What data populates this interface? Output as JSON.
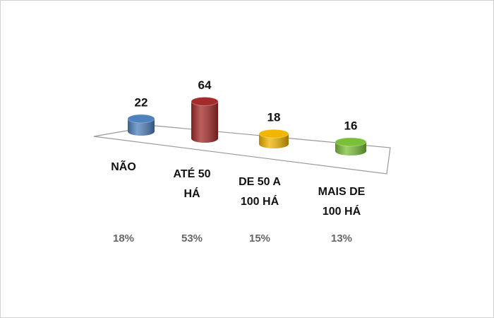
{
  "chart_data": {
    "type": "cylinder",
    "categories": [
      [
        "NÃO"
      ],
      [
        "ATÉ 50",
        "HÁ"
      ],
      [
        "DE 50 A",
        "100 HÁ"
      ],
      [
        "MAIS DE",
        "100 HÁ"
      ]
    ],
    "values": [
      22,
      64,
      18,
      16
    ],
    "percent_labels": [
      "18%",
      "53%",
      "15%",
      "13%"
    ],
    "colors": [
      "#4f81bd",
      "#a52a2a",
      "#f2b600",
      "#7cc03a"
    ]
  }
}
